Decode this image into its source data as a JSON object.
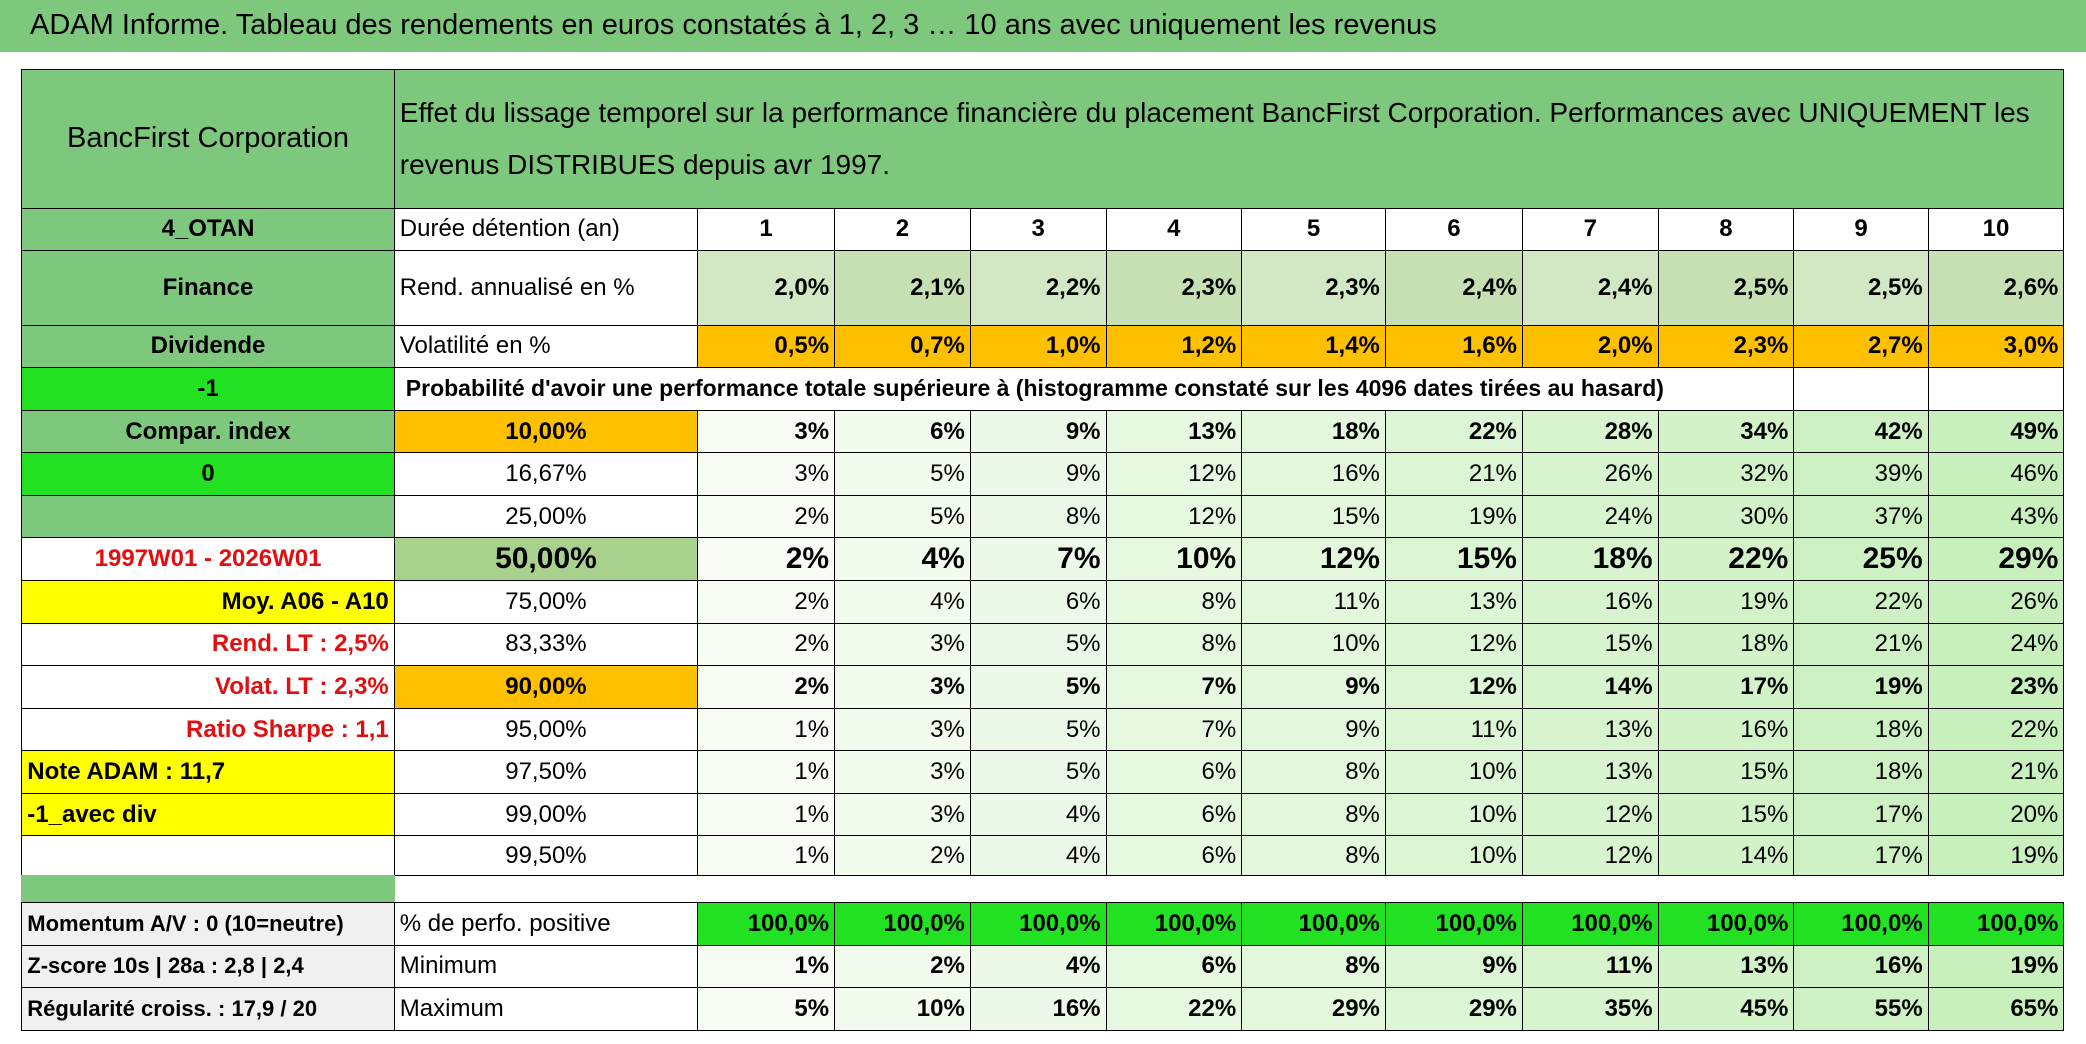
{
  "header": {
    "title": "ADAM Informe. Tableau des rendements en euros constatés à 1, 2, 3 … 10 ans avec uniquement les revenus"
  },
  "info": {
    "company": "BancFirst Corporation",
    "description": "Effet du lissage temporel sur la performance financière du placement BancFirst Corporation. Performances avec UNIQUEMENT les revenus DISTRIBUES depuis avr 1997."
  },
  "rows": [
    {
      "label": "4_OTAN",
      "name": "Durée détention (an)",
      "values": [
        1,
        2,
        3,
        4,
        5,
        6,
        7,
        8,
        9,
        10
      ]
    },
    {
      "label": "Finance",
      "name": "Rend. annualisé en %",
      "values": [
        "2,0%",
        "2,1%",
        "2,2%",
        "2,3%",
        "2,3%",
        "2,4%",
        "2,4%",
        "2,5%",
        "2,5%",
        "2,6%"
      ]
    },
    {
      "label": "Dividende",
      "name": "Volatilité en %",
      "values": [
        "0,5%",
        "0,7%",
        "1,0%",
        "1,2%",
        "1,4%",
        "1,6%",
        "2,0%",
        "2,3%",
        "2,7%",
        "3,0%"
      ]
    },
    {
      "label": "-1",
      "name": "Probabilité d'avoir une performance totale supérieure à (histogramme constaté sur les 4096 dates tirées au hasard)"
    },
    {
      "label": "Compar. index",
      "name": "10,00%",
      "values": [
        "3%",
        "6%",
        "9%",
        "13%",
        "18%",
        "22%",
        "28%",
        "34%",
        "42%",
        "49%"
      ]
    },
    {
      "label": "0",
      "name": "16,67%",
      "values": [
        "3%",
        "5%",
        "9%",
        "12%",
        "16%",
        "21%",
        "26%",
        "32%",
        "39%",
        "46%"
      ]
    },
    {
      "name": "25,00%",
      "values": [
        "2%",
        "5%",
        "8%",
        "12%",
        "15%",
        "19%",
        "24%",
        "30%",
        "37%",
        "43%"
      ]
    },
    {
      "label": "1997W01 - 2026W01",
      "name": "50,00%",
      "values": [
        "2%",
        "4%",
        "7%",
        "10%",
        "12%",
        "15%",
        "18%",
        "22%",
        "25%",
        "29%"
      ]
    },
    {
      "label": "Moy. A06 - A10",
      "name": "75,00%",
      "values": [
        "2%",
        "4%",
        "6%",
        "8%",
        "11%",
        "13%",
        "16%",
        "19%",
        "22%",
        "26%"
      ]
    },
    {
      "label": "Rend. LT :   2,5%",
      "name": "83,33%",
      "values": [
        "2%",
        "3%",
        "5%",
        "8%",
        "10%",
        "12%",
        "15%",
        "18%",
        "21%",
        "24%"
      ]
    },
    {
      "label": "Volat. LT :   2,3%",
      "name": "90,00%",
      "values": [
        "2%",
        "3%",
        "5%",
        "7%",
        "9%",
        "12%",
        "14%",
        "17%",
        "19%",
        "23%"
      ]
    },
    {
      "label": "Ratio Sharpe :   1,1",
      "name": "95,00%",
      "values": [
        "1%",
        "3%",
        "5%",
        "7%",
        "9%",
        "11%",
        "13%",
        "16%",
        "18%",
        "22%"
      ]
    },
    {
      "label": "Note ADAM : 11,7",
      "name": "97,50%",
      "values": [
        "1%",
        "3%",
        "5%",
        "6%",
        "8%",
        "10%",
        "13%",
        "15%",
        "18%",
        "21%"
      ]
    },
    {
      "label": "-1_avec div",
      "name": "99,00%",
      "values": [
        "1%",
        "3%",
        "4%",
        "6%",
        "8%",
        "10%",
        "12%",
        "15%",
        "17%",
        "20%"
      ]
    },
    {
      "name": "99,50%",
      "values": [
        "1%",
        "2%",
        "4%",
        "6%",
        "8%",
        "10%",
        "12%",
        "14%",
        "17%",
        "19%"
      ]
    },
    {},
    {
      "label": "Momentum A/V : 0 (10=neutre)",
      "name": "% de perfo. positive",
      "values": [
        "100,0%",
        "100,0%",
        "100,0%",
        "100,0%",
        "100,0%",
        "100,0%",
        "100,0%",
        "100,0%",
        "100,0%",
        "100,0%"
      ]
    },
    {
      "label": "Z-score 10s | 28a : 2,8 | 2,4",
      "name": "Minimum",
      "values": [
        "1%",
        "2%",
        "4%",
        "6%",
        "8%",
        "9%",
        "11%",
        "13%",
        "16%",
        "19%"
      ]
    },
    {
      "label": "Régularité croiss. : 17,9 / 20",
      "name": "Maximum",
      "values": [
        "5%",
        "10%",
        "16%",
        "22%",
        "29%",
        "29%",
        "35%",
        "45%",
        "55%",
        "65%"
      ]
    }
  ]
}
